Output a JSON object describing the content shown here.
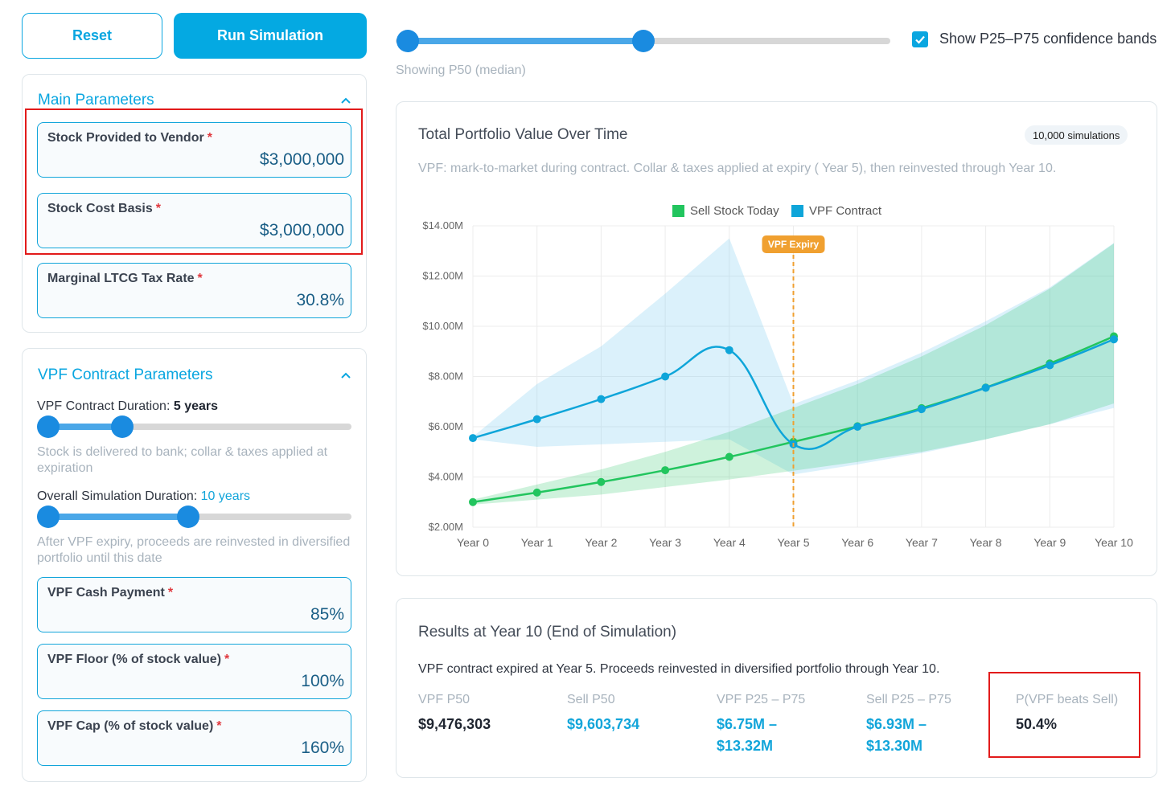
{
  "buttons": {
    "reset": "Reset",
    "run": "Run Simulation"
  },
  "main_params": {
    "title": "Main Parameters",
    "fields": [
      {
        "label": "Stock Provided to Vendor",
        "required": "*",
        "value": "$3,000,000"
      },
      {
        "label": "Stock Cost Basis",
        "required": "*",
        "value": "$3,000,000"
      },
      {
        "label": "Marginal LTCG Tax Rate",
        "required": "*",
        "value": "30.8%"
      }
    ]
  },
  "vpf_params": {
    "title": "VPF Contract Parameters",
    "duration_label": "VPF Contract Duration:",
    "duration_value": "5 years",
    "duration_fraction": 0.27,
    "duration_help": "Stock is delivered to bank; collar & taxes applied at expiration",
    "sim_label": "Overall Simulation Duration:",
    "sim_value": "10 years",
    "sim_fraction": 0.48,
    "sim_help": "After VPF expiry, proceeds are reinvested in diversified portfolio until this date",
    "fields": [
      {
        "label": "VPF Cash Payment",
        "required": "*",
        "value": "85%"
      },
      {
        "label": "VPF Floor (% of stock value)",
        "required": "*",
        "value": "100%"
      },
      {
        "label": "VPF Cap (% of stock value)",
        "required": "*",
        "value": "160%"
      }
    ]
  },
  "percentile_slider": {
    "low": 0.025,
    "high": 0.5
  },
  "confidence": {
    "label": "Show P25–P75 confidence bands",
    "checked": true
  },
  "showing": "Showing P50 (median)",
  "chart_card": {
    "title": "Total Portfolio Value Over Time",
    "badge": "10,000 simulations",
    "subtitle": "VPF: mark-to-market during contract. Collar & taxes applied at expiry ( Year 5), then reinvested through Year 10."
  },
  "chart_data": {
    "type": "line",
    "title": "Total Portfolio Value Over Time",
    "categories": [
      "Year 0",
      "Year 1",
      "Year 2",
      "Year 3",
      "Year 4",
      "Year 5",
      "Year 6",
      "Year 7",
      "Year 8",
      "Year 9",
      "Year 10"
    ],
    "ylim": [
      2,
      14
    ],
    "yticks": [
      "$2.00M",
      "$4.00M",
      "$6.00M",
      "$8.00M",
      "$10.00M",
      "$12.00M",
      "$14.00M"
    ],
    "legend": [
      "Sell Stock Today",
      "VPF Contract"
    ],
    "annotation": {
      "label": "VPF Expiry",
      "at": "Year 5"
    },
    "series": [
      {
        "name": "Sell Stock Today",
        "color": "#22c55e",
        "values": [
          3.0,
          3.38,
          3.8,
          4.27,
          4.8,
          5.4,
          6.02,
          6.74,
          7.56,
          8.52,
          9.6
        ],
        "p25": [
          2.9,
          3.1,
          3.3,
          3.6,
          3.9,
          4.25,
          4.6,
          5.0,
          5.5,
          6.1,
          6.93
        ],
        "p75": [
          3.1,
          3.7,
          4.3,
          5.0,
          5.8,
          6.75,
          7.7,
          8.8,
          10.05,
          11.5,
          13.3
        ]
      },
      {
        "name": "VPF Contract",
        "color": "#0ea5d9",
        "values": [
          5.55,
          6.3,
          7.1,
          8.0,
          9.05,
          5.3,
          6.0,
          6.7,
          7.55,
          8.45,
          9.48
        ],
        "p25": [
          5.5,
          5.2,
          5.3,
          5.4,
          5.5,
          4.1,
          4.5,
          4.95,
          5.5,
          6.1,
          6.75
        ],
        "p75": [
          5.6,
          7.7,
          9.2,
          11.3,
          13.5,
          6.9,
          7.85,
          8.95,
          10.2,
          11.55,
          13.32
        ]
      }
    ]
  },
  "results": {
    "title": "Results at Year 10 (End of Simulation)",
    "subtitle": "VPF contract expired at Year 5. Proceeds reinvested in diversified portfolio through Year 10.",
    "metrics": [
      {
        "label": "VPF P50",
        "value": "$9,476,303",
        "style": "dark"
      },
      {
        "label": "Sell P50",
        "value": "$9,603,734",
        "style": "blue"
      },
      {
        "label": "VPF P25 – P75",
        "value": "$6.75M – $13.32M",
        "style": "blue"
      },
      {
        "label": "Sell P25 – P75",
        "value": "$6.93M – $13.30M",
        "style": "blue"
      },
      {
        "label": "P(VPF beats Sell)",
        "value": "50.4%",
        "style": "dark"
      }
    ]
  },
  "colors": {
    "accent": "#0aa6e0",
    "sell": "#22c55e",
    "vpf": "#0ea5d9",
    "expiry": "#f0a030",
    "highlight": "#e21b1b"
  },
  "icons": {
    "collapse": "chevron-up-icon",
    "check": "check-icon"
  }
}
